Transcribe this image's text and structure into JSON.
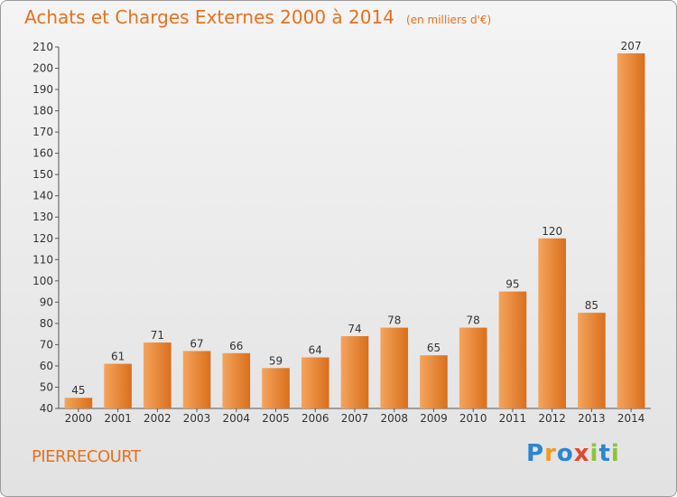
{
  "header": {
    "title": "Achats et Charges Externes 2000 à 2014",
    "unit_note": "(en milliers d'€)"
  },
  "commune": "PIERRECOURT",
  "logo": {
    "text": "Proxiti",
    "letters": [
      {
        "char": "P",
        "color": "#2a86d1"
      },
      {
        "char": "r",
        "color": "#f39a1f"
      },
      {
        "char": "o",
        "color": "#2a86d1"
      },
      {
        "char": "x",
        "color": "#e2462c"
      },
      {
        "char": "i",
        "color": "#8cc43e"
      },
      {
        "char": "t",
        "color": "#2a86d1"
      },
      {
        "char": "i",
        "color": "#8cc43e"
      }
    ]
  },
  "colors": {
    "accent": "#e8701c",
    "bar_light": "#f5a45c",
    "bar_dark": "#d96f1c"
  },
  "chart_data": {
    "type": "bar",
    "title": "Achats et Charges Externes 2000 à 2014",
    "subtitle": "(en milliers d'€)",
    "categories": [
      "2000",
      "2001",
      "2002",
      "2003",
      "2004",
      "2005",
      "2006",
      "2007",
      "2008",
      "2009",
      "2010",
      "2011",
      "2012",
      "2013",
      "2014"
    ],
    "values": [
      45,
      61,
      71,
      67,
      66,
      59,
      64,
      74,
      78,
      65,
      78,
      95,
      120,
      85,
      207
    ],
    "ylim": [
      40,
      210
    ],
    "yticks": [
      40,
      50,
      60,
      70,
      80,
      90,
      100,
      110,
      120,
      130,
      140,
      150,
      160,
      170,
      180,
      190,
      200,
      210
    ],
    "grid": false,
    "xlabel": "",
    "ylabel": ""
  }
}
